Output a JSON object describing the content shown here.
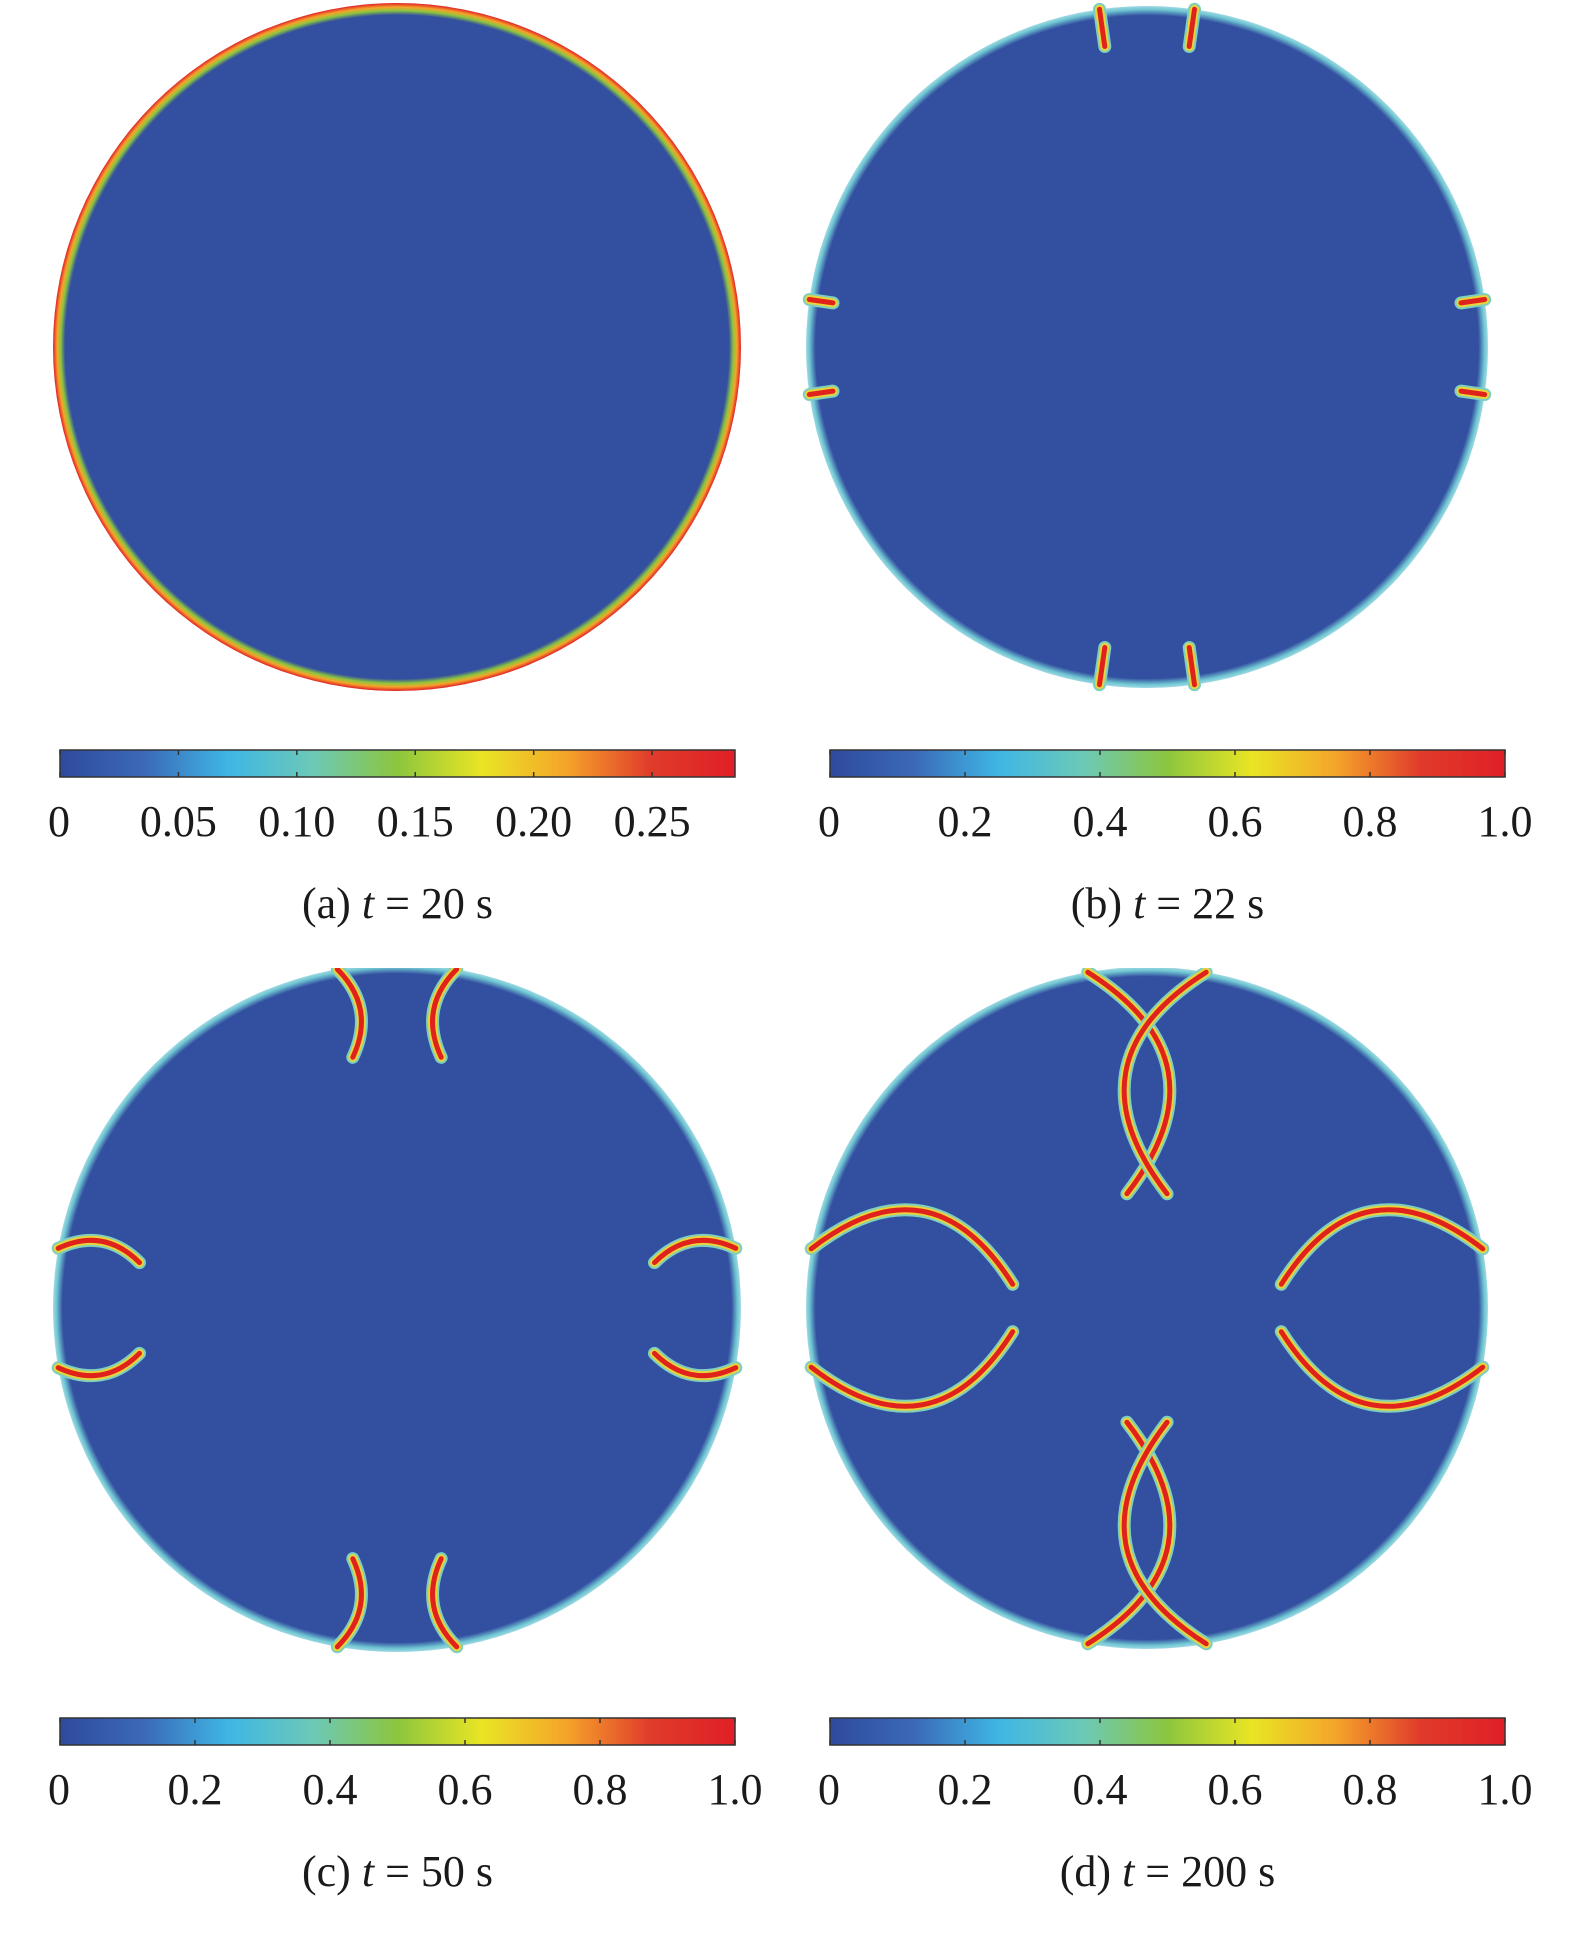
{
  "colors": {
    "background_field": "#334fa0",
    "crack": "#e0221c",
    "rim_glow": "#6fc6d2",
    "colormap": [
      "#2f4a9d",
      "#3b69b8",
      "#3fb6e4",
      "#6cc9b7",
      "#8cc63e",
      "#e9e524",
      "#f5a42a",
      "#e03b2b",
      "#e01f26"
    ]
  },
  "panels": [
    {
      "id": "a",
      "caption_prefix": "(a)",
      "caption_var": "t",
      "caption_suffix": "= 20 s",
      "time_s": 20,
      "colorbar": {
        "min": 0,
        "max": 0.285,
        "ticks": [
          0,
          0.05,
          0.1,
          0.15,
          0.2,
          0.25
        ],
        "tick_labels": [
          "0",
          "0.05",
          "0.10",
          "0.15",
          "0.20",
          "0.25"
        ]
      },
      "field": "edge-ring",
      "cracks": []
    },
    {
      "id": "b",
      "caption_prefix": "(b)",
      "caption_var": "t",
      "caption_suffix": "= 22 s",
      "time_s": 22,
      "colorbar": {
        "min": 0,
        "max": 1.0,
        "ticks": [
          0,
          0.2,
          0.4,
          0.6,
          0.8,
          1.0
        ],
        "tick_labels": [
          "0",
          "0.2",
          "0.4",
          "0.6",
          "0.8",
          "1.0"
        ]
      },
      "field": "cracks",
      "cracks": [
        {
          "angle": -98,
          "len": 0.055,
          "bend": 0
        },
        {
          "angle": -82,
          "len": 0.055,
          "bend": 0
        },
        {
          "angle": 8,
          "len": 0.035,
          "bend": 0
        },
        {
          "angle": -8,
          "len": 0.035,
          "bend": 0
        },
        {
          "angle": 98,
          "len": 0.055,
          "bend": 0
        },
        {
          "angle": 82,
          "len": 0.055,
          "bend": 0
        },
        {
          "angle": 172,
          "len": 0.035,
          "bend": 0
        },
        {
          "angle": 188,
          "len": 0.035,
          "bend": 0
        }
      ]
    },
    {
      "id": "c",
      "caption_prefix": "(c)",
      "caption_var": "t",
      "caption_suffix": "= 50 s",
      "time_s": 50,
      "colorbar": {
        "min": 0,
        "max": 1.0,
        "ticks": [
          0,
          0.2,
          0.4,
          0.6,
          0.8,
          1.0
        ],
        "tick_labels": [
          "0",
          "0.2",
          "0.4",
          "0.6",
          "0.8",
          "1.0"
        ]
      },
      "field": "cracks",
      "cracks": [
        {
          "angle": -100,
          "len": 0.13,
          "bend": 0.35
        },
        {
          "angle": -80,
          "len": 0.13,
          "bend": -0.35
        },
        {
          "angle": 10,
          "len": 0.12,
          "bend": 0.35
        },
        {
          "angle": -10,
          "len": 0.12,
          "bend": -0.35
        },
        {
          "angle": 100,
          "len": 0.13,
          "bend": -0.35
        },
        {
          "angle": 80,
          "len": 0.13,
          "bend": 0.35
        },
        {
          "angle": 170,
          "len": 0.12,
          "bend": -0.35
        },
        {
          "angle": 190,
          "len": 0.12,
          "bend": 0.35
        }
      ]
    },
    {
      "id": "d",
      "caption_prefix": "(d)",
      "caption_var": "t",
      "caption_suffix": "= 200 s",
      "time_s": 200,
      "colorbar": {
        "min": 0,
        "max": 1.0,
        "ticks": [
          0,
          0.2,
          0.4,
          0.6,
          0.8,
          1.0
        ],
        "tick_labels": [
          "0",
          "0.2",
          "0.4",
          "0.6",
          "0.8",
          "1.0"
        ]
      },
      "field": "cracks",
      "cracks": [
        {
          "angle": -100,
          "len": 0.33,
          "bend": 0.55
        },
        {
          "angle": -80,
          "len": 0.33,
          "bend": -0.55
        },
        {
          "angle": 10,
          "len": 0.3,
          "bend": 0.55
        },
        {
          "angle": -10,
          "len": 0.3,
          "bend": -0.55
        },
        {
          "angle": 100,
          "len": 0.33,
          "bend": -0.55
        },
        {
          "angle": 80,
          "len": 0.33,
          "bend": 0.55
        },
        {
          "angle": 170,
          "len": 0.3,
          "bend": -0.55
        },
        {
          "angle": 190,
          "len": 0.3,
          "bend": 0.55
        }
      ]
    }
  ]
}
